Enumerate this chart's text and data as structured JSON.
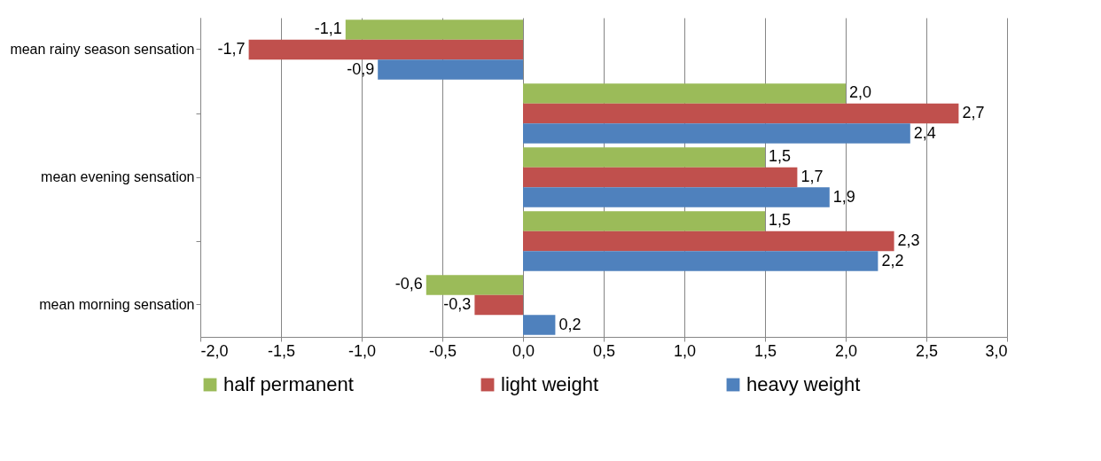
{
  "chart_data": {
    "type": "bar",
    "orientation": "horizontal",
    "categories": [
      "mean rainy season sensation",
      null,
      "mean evening sensation",
      null,
      "mean morning sensation"
    ],
    "series": [
      {
        "name": "half permanent",
        "color": "#9bbb59",
        "values": [
          -1.1,
          2.0,
          1.5,
          1.5,
          -0.6
        ],
        "value_labels": [
          "-1,1",
          "2,0",
          "1,5",
          "1,5",
          "-0,6"
        ]
      },
      {
        "name": "light weight",
        "color": "#c0504d",
        "values": [
          -1.7,
          2.7,
          1.7,
          2.3,
          -0.3
        ],
        "value_labels": [
          "-1,7",
          "2,7",
          "1,7",
          "2,3",
          "-0,3"
        ]
      },
      {
        "name": "heavy weight",
        "color": "#4f81bd",
        "values": [
          -0.9,
          2.4,
          1.9,
          2.2,
          0.2
        ],
        "value_labels": [
          "-0,9",
          "2,4",
          "1,9",
          "2,2",
          "0,2"
        ]
      }
    ],
    "xlim": [
      -2.0,
      3.0
    ],
    "xticks": [
      {
        "value": -2.0,
        "label": "-2,0"
      },
      {
        "value": -1.5,
        "label": "-1,5"
      },
      {
        "value": -1.0,
        "label": "-1,0"
      },
      {
        "value": -0.5,
        "label": "-0,5"
      },
      {
        "value": 0.0,
        "label": "0,0"
      },
      {
        "value": 0.5,
        "label": "0,5"
      },
      {
        "value": 1.0,
        "label": "1,0"
      },
      {
        "value": 1.5,
        "label": "1,5"
      },
      {
        "value": 2.0,
        "label": "2,0"
      },
      {
        "value": 2.5,
        "label": "2,5"
      },
      {
        "value": 3.0,
        "label": "3,0"
      }
    ],
    "grid": "x",
    "legend": "bottom"
  }
}
